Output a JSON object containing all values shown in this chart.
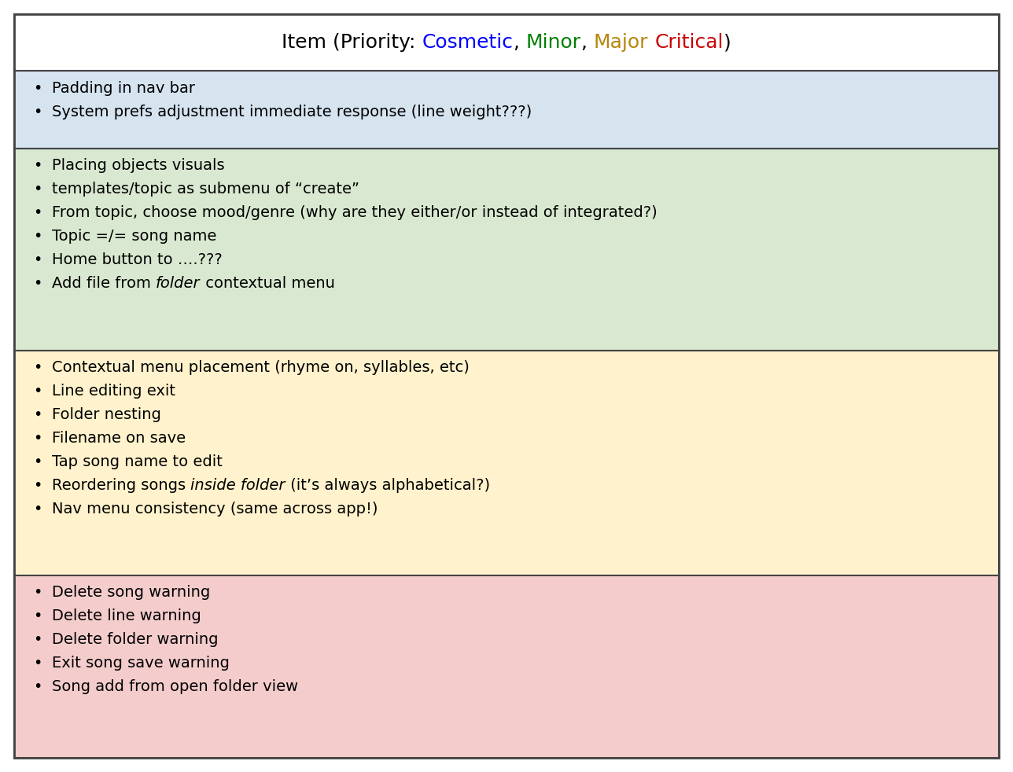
{
  "title_parts": [
    {
      "text": "Item (Priority: ",
      "color": "#000000"
    },
    {
      "text": "Cosmetic",
      "color": "#0000FF"
    },
    {
      "text": ", ",
      "color": "#000000"
    },
    {
      "text": "Minor",
      "color": "#008000"
    },
    {
      "text": ", ",
      "color": "#000000"
    },
    {
      "text": "Major",
      "color": "#B8860B"
    },
    {
      "text": " ",
      "color": "#000000"
    },
    {
      "text": "Critical",
      "color": "#CC0000"
    },
    {
      "text": ")",
      "color": "#000000"
    }
  ],
  "sections": [
    {
      "bg_color": "#D6E4F0",
      "items": [
        "Padding in nav bar",
        "System prefs adjustment immediate response (line weight???)"
      ],
      "italic_phrases": []
    },
    {
      "bg_color": "#D9E8D0",
      "items": [
        "Placing objects visuals",
        "templates/topic as submenu of “create”",
        "From topic, choose mood/genre (why are they either/or instead of integrated?)",
        "Topic =/= song name",
        "Home button to ….???",
        "Add file from folder contextual menu"
      ],
      "italic_phrases": [
        "folder"
      ]
    },
    {
      "bg_color": "#FFF2CC",
      "items": [
        "Contextual menu placement (rhyme on, syllables, etc)",
        "Line editing exit",
        "Folder nesting",
        "Filename on save",
        "Tap song name to edit",
        "Reordering songs inside folder (it’s always alphabetical?)",
        "Nav menu consistency (same across app!)"
      ],
      "italic_phrases": [
        "inside folder"
      ]
    },
    {
      "bg_color": "#F4CCCC",
      "items": [
        "Delete song warning",
        "Delete line warning",
        "Delete folder warning",
        "Exit song save warning",
        "Song add from open folder view"
      ],
      "italic_phrases": []
    }
  ],
  "border_color": "#444444",
  "font_size": 14,
  "title_font_size": 18,
  "bullet": "•"
}
